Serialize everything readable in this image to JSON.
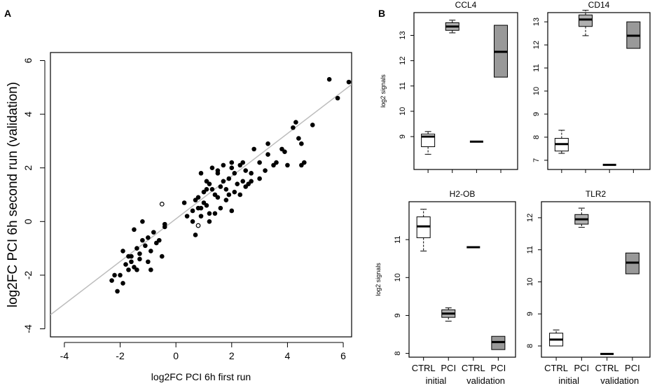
{
  "chart_data": [
    {
      "panel_label": "A",
      "type": "scatter",
      "title": "",
      "xlabel": "log2FC PCI 6h first run",
      "ylabel": "log2FC PCI 6h second run (validation)",
      "xlim": [
        -4.5,
        6.3
      ],
      "ylim": [
        -4.3,
        6.3
      ],
      "xticks": [
        "-4",
        "-2",
        "0",
        "2",
        "4",
        "6"
      ],
      "yticks": [
        "-4",
        "-2",
        "0",
        "2",
        "4",
        "6"
      ],
      "fit_line": {
        "slope": 0.795,
        "intercept": 0.1,
        "color": "#bdbdbd"
      },
      "series": [
        {
          "name": "genes",
          "marker": "filled",
          "points": [
            [
              -2.3,
              -2.2
            ],
            [
              -2.1,
              -2.6
            ],
            [
              -2.2,
              -2.0
            ],
            [
              -1.9,
              -2.3
            ],
            [
              -1.8,
              -1.6
            ],
            [
              -1.7,
              -1.8
            ],
            [
              -1.6,
              -1.5
            ],
            [
              -1.5,
              -1.7
            ],
            [
              -1.9,
              -1.1
            ],
            [
              -1.4,
              -1.0
            ],
            [
              -1.3,
              -1.4
            ],
            [
              -1.2,
              -0.7
            ],
            [
              -1.1,
              -0.9
            ],
            [
              -1.0,
              -0.6
            ],
            [
              -1.0,
              -1.5
            ],
            [
              -0.9,
              -1.8
            ],
            [
              -0.8,
              -0.4
            ],
            [
              -0.7,
              -0.8
            ],
            [
              -1.5,
              -0.3
            ],
            [
              -1.2,
              0.0
            ],
            [
              -0.4,
              -0.2
            ],
            [
              -0.4,
              -0.1
            ],
            [
              -0.5,
              -1.3
            ],
            [
              -1.3,
              -1.2
            ],
            [
              -1.6,
              -1.3
            ],
            [
              0.3,
              0.7
            ],
            [
              0.6,
              0.4
            ],
            [
              0.7,
              0.8
            ],
            [
              0.8,
              0.9
            ],
            [
              0.9,
              0.5
            ],
            [
              1.0,
              0.7
            ],
            [
              1.1,
              0.6
            ],
            [
              1.2,
              0.3
            ],
            [
              1.3,
              1.2
            ],
            [
              1.4,
              1.0
            ],
            [
              1.5,
              0.9
            ],
            [
              1.6,
              1.3
            ],
            [
              1.7,
              1.5
            ],
            [
              1.8,
              1.2
            ],
            [
              1.9,
              1.6
            ],
            [
              2.0,
              2.0
            ],
            [
              2.1,
              1.8
            ],
            [
              2.2,
              1.4
            ],
            [
              2.3,
              2.1
            ],
            [
              2.4,
              1.5
            ],
            [
              2.5,
              1.3
            ],
            [
              2.6,
              1.4
            ],
            [
              2.7,
              1.5
            ],
            [
              1.0,
              1.1
            ],
            [
              1.4,
              0.3
            ],
            [
              1.8,
              0.8
            ],
            [
              2.0,
              0.4
            ],
            [
              1.3,
              2.0
            ],
            [
              1.1,
              1.5
            ],
            [
              0.8,
              0.5
            ],
            [
              1.6,
              0.5
            ],
            [
              1.9,
              1.0
            ],
            [
              2.3,
              1.0
            ],
            [
              0.4,
              0.2
            ],
            [
              0.9,
              0.2
            ],
            [
              1.2,
              1.4
            ],
            [
              1.5,
              1.8
            ],
            [
              2.1,
              1.1
            ],
            [
              2.5,
              1.9
            ],
            [
              2.8,
              2.7
            ],
            [
              3.0,
              1.6
            ],
            [
              3.2,
              1.9
            ],
            [
              3.3,
              2.5
            ],
            [
              3.5,
              2.1
            ],
            [
              3.6,
              2.2
            ],
            [
              3.9,
              2.6
            ],
            [
              4.0,
              2.1
            ],
            [
              4.2,
              3.5
            ],
            [
              4.3,
              3.7
            ],
            [
              4.5,
              2.9
            ],
            [
              4.5,
              2.1
            ],
            [
              4.6,
              2.2
            ],
            [
              4.9,
              3.6
            ],
            [
              5.5,
              5.3
            ],
            [
              5.8,
              4.6
            ],
            [
              6.2,
              5.2
            ],
            [
              3.8,
              2.7
            ],
            [
              4.4,
              3.1
            ],
            [
              3.3,
              2.9
            ],
            [
              3.0,
              2.2
            ],
            [
              2.7,
              1.8
            ],
            [
              2.4,
              2.2
            ],
            [
              1.7,
              2.1
            ],
            [
              1.5,
              1.9
            ],
            [
              1.1,
              1.2
            ],
            [
              0.6,
              0.0
            ],
            [
              0.7,
              -0.5
            ],
            [
              1.2,
              0.0
            ],
            [
              -0.6,
              -0.7
            ],
            [
              -0.9,
              -1.1
            ],
            [
              -1.4,
              -1.8
            ],
            [
              -2.0,
              -2.0
            ],
            [
              -1.7,
              -1.3
            ],
            [
              0.9,
              1.8
            ],
            [
              2.0,
              2.2
            ]
          ]
        },
        {
          "name": "outliers",
          "marker": "open",
          "points": [
            [
              -0.5,
              0.65
            ],
            [
              0.8,
              -0.15
            ]
          ]
        }
      ]
    },
    {
      "panel_label": "B",
      "type": "boxplot",
      "ylabel": "log2 signals",
      "group_labels": [
        "initial",
        "validation"
      ],
      "categories": [
        "CTRL",
        "PCI",
        "CTRL",
        "PCI"
      ],
      "box_fill": [
        "#ffffff",
        "#b0b0b0",
        "#ffffff",
        "#999999"
      ],
      "panels": [
        {
          "title": "CCL4",
          "ylim": [
            7.7,
            13.9
          ],
          "yticks": [
            "9",
            "10",
            "11",
            "12",
            "13"
          ],
          "boxes": [
            {
              "min": 8.3,
              "q1": 8.6,
              "median": 9.0,
              "q3": 9.1,
              "max": 9.2
            },
            {
              "min": 13.1,
              "q1": 13.2,
              "median": 13.35,
              "q3": 13.5,
              "max": 13.6
            },
            {
              "min": 8.8,
              "q1": 8.8,
              "median": 8.8,
              "q3": 8.8,
              "max": 8.8
            },
            {
              "min": 11.35,
              "q1": 11.35,
              "median": 12.35,
              "q3": 13.4,
              "max": 13.4
            }
          ]
        },
        {
          "title": "CD14",
          "ylim": [
            6.6,
            13.4
          ],
          "yticks": [
            "7",
            "8",
            "9",
            "10",
            "11",
            "12",
            "13"
          ],
          "boxes": [
            {
              "min": 7.3,
              "q1": 7.4,
              "median": 7.7,
              "q3": 7.95,
              "max": 8.3
            },
            {
              "min": 12.4,
              "q1": 12.8,
              "median": 13.1,
              "q3": 13.3,
              "max": 13.5
            },
            {
              "min": 6.8,
              "q1": 6.8,
              "median": 6.8,
              "q3": 6.8,
              "max": 6.8
            },
            {
              "min": 11.85,
              "q1": 11.85,
              "median": 12.4,
              "q3": 13.0,
              "max": 13.0
            }
          ]
        },
        {
          "title": "H2-OB",
          "ylim": [
            7.9,
            12.0
          ],
          "yticks": [
            "8",
            "9",
            "10",
            "11"
          ],
          "boxes": [
            {
              "min": 10.7,
              "q1": 11.05,
              "median": 11.35,
              "q3": 11.6,
              "max": 11.8
            },
            {
              "min": 8.85,
              "q1": 8.95,
              "median": 9.05,
              "q3": 9.15,
              "max": 9.2
            },
            {
              "min": 10.8,
              "q1": 10.8,
              "median": 10.8,
              "q3": 10.8,
              "max": 10.8
            },
            {
              "min": 8.1,
              "q1": 8.1,
              "median": 8.3,
              "q3": 8.45,
              "max": 8.45
            }
          ]
        },
        {
          "title": "TLR2",
          "ylim": [
            7.65,
            12.5
          ],
          "yticks": [
            "8",
            "9",
            "10",
            "11",
            "12"
          ],
          "boxes": [
            {
              "min": 8.0,
              "q1": 8.0,
              "median": 8.2,
              "q3": 8.4,
              "max": 8.5
            },
            {
              "min": 11.7,
              "q1": 11.8,
              "median": 11.95,
              "q3": 12.1,
              "max": 12.3
            },
            {
              "min": 7.75,
              "q1": 7.75,
              "median": 7.75,
              "q3": 7.75,
              "max": 7.75
            },
            {
              "min": 10.25,
              "q1": 10.25,
              "median": 10.6,
              "q3": 10.9,
              "max": 10.9
            }
          ]
        }
      ]
    }
  ]
}
